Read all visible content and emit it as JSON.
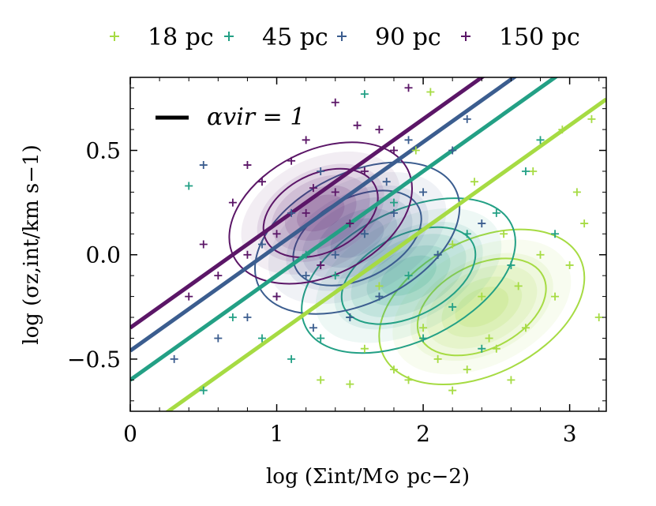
{
  "chart_data": {
    "type": "scatter",
    "xlabel": "log (Σint/M⊙ pc−2)",
    "ylabel": "log (σz,int/km s−1)",
    "xlim": [
      0,
      3.25
    ],
    "ylim": [
      -0.75,
      0.85
    ],
    "xticks": [
      0,
      1,
      2,
      3
    ],
    "xtick_labels": [
      "0",
      "1",
      "2",
      "3"
    ],
    "yticks": [
      -0.5,
      0.0,
      0.5
    ],
    "ytick_labels": [
      "−0.5",
      "0.0",
      "0.5"
    ],
    "legend": {
      "placement": "top",
      "ncol": 4
    },
    "annotation": {
      "label": "αvir = 1",
      "color": "#000000"
    },
    "series": [
      {
        "name": "18 pc",
        "color": "#a6db43",
        "line": {
          "intercept": -0.88,
          "slope": 0.5
        },
        "density_center": [
          2.4,
          -0.25
        ],
        "density_spread": [
          0.62,
          0.28
        ],
        "density_tilt": 0.35,
        "points": [
          [
            1.9,
            -0.6
          ],
          [
            2.1,
            -0.5
          ],
          [
            2.3,
            -0.55
          ],
          [
            2.5,
            -0.45
          ],
          [
            2.7,
            -0.35
          ],
          [
            2.9,
            -0.2
          ],
          [
            3.0,
            -0.05
          ],
          [
            3.1,
            0.15
          ],
          [
            2.6,
            -0.6
          ],
          [
            2.2,
            -0.65
          ],
          [
            1.8,
            -0.55
          ],
          [
            2.8,
            0.0
          ],
          [
            3.05,
            0.3
          ],
          [
            2.95,
            0.6
          ],
          [
            3.15,
            0.65
          ],
          [
            2.4,
            -0.2
          ],
          [
            2.0,
            -0.35
          ],
          [
            1.6,
            -0.45
          ],
          [
            1.3,
            -0.6
          ],
          [
            2.55,
            0.1
          ],
          [
            2.75,
            0.4
          ],
          [
            2.2,
            0.05
          ],
          [
            1.95,
            0.5
          ],
          [
            2.05,
            0.78
          ],
          [
            1.7,
            -0.15
          ],
          [
            3.2,
            -0.3
          ],
          [
            2.45,
            -0.4
          ],
          [
            2.65,
            -0.15
          ],
          [
            1.5,
            -0.62
          ],
          [
            2.35,
            0.35
          ]
        ]
      },
      {
        "name": "45 pc",
        "color": "#23a085",
        "line": {
          "intercept": -0.6,
          "slope": 0.5
        },
        "density_center": [
          1.9,
          -0.1
        ],
        "density_spread": [
          0.65,
          0.27
        ],
        "density_tilt": 0.35,
        "points": [
          [
            1.5,
            -0.3
          ],
          [
            1.7,
            -0.2
          ],
          [
            1.9,
            -0.1
          ],
          [
            2.1,
            0.0
          ],
          [
            2.3,
            0.1
          ],
          [
            2.5,
            0.2
          ],
          [
            1.3,
            -0.4
          ],
          [
            1.1,
            -0.5
          ],
          [
            0.9,
            -0.4
          ],
          [
            2.7,
            0.4
          ],
          [
            2.0,
            -0.4
          ],
          [
            1.6,
            0.1
          ],
          [
            2.2,
            -0.25
          ],
          [
            0.4,
            0.33
          ],
          [
            1.6,
            0.77
          ],
          [
            2.8,
            0.55
          ],
          [
            1.4,
            -0.1
          ],
          [
            2.6,
            -0.05
          ],
          [
            0.7,
            -0.3
          ],
          [
            1.8,
            0.25
          ],
          [
            2.4,
            -0.45
          ],
          [
            0.5,
            -0.65
          ],
          [
            1.2,
            0.0
          ],
          [
            2.9,
            0.1
          ]
        ]
      },
      {
        "name": "90 pc",
        "color": "#3b5d8f",
        "line": {
          "intercept": -0.46,
          "slope": 0.5
        },
        "density_center": [
          1.55,
          0.08
        ],
        "density_spread": [
          0.62,
          0.27
        ],
        "density_tilt": 0.35,
        "points": [
          [
            1.0,
            -0.2
          ],
          [
            1.2,
            -0.1
          ],
          [
            1.4,
            0.0
          ],
          [
            1.6,
            0.1
          ],
          [
            1.8,
            0.2
          ],
          [
            2.0,
            0.3
          ],
          [
            0.8,
            -0.3
          ],
          [
            0.6,
            -0.4
          ],
          [
            1.5,
            -0.3
          ],
          [
            2.2,
            0.5
          ],
          [
            1.9,
            0.55
          ],
          [
            1.7,
            -0.2
          ],
          [
            0.5,
            0.43
          ],
          [
            1.3,
            0.4
          ],
          [
            2.3,
            0.65
          ],
          [
            1.1,
            0.2
          ],
          [
            0.3,
            -0.5
          ],
          [
            2.1,
            0.0
          ],
          [
            0.9,
            0.05
          ],
          [
            1.75,
            0.35
          ],
          [
            1.25,
            -0.35
          ],
          [
            2.4,
            0.15
          ]
        ]
      },
      {
        "name": "150 pc",
        "color": "#5b1667",
        "line": {
          "intercept": -0.35,
          "slope": 0.5
        },
        "density_center": [
          1.3,
          0.2
        ],
        "density_spread": [
          0.55,
          0.26
        ],
        "density_tilt": 0.35,
        "points": [
          [
            0.8,
            0.0
          ],
          [
            1.0,
            0.1
          ],
          [
            1.2,
            0.2
          ],
          [
            1.4,
            0.3
          ],
          [
            1.6,
            0.4
          ],
          [
            1.8,
            0.5
          ],
          [
            0.6,
            -0.1
          ],
          [
            0.4,
            -0.2
          ],
          [
            1.1,
            0.45
          ],
          [
            1.3,
            -0.05
          ],
          [
            1.5,
            0.15
          ],
          [
            0.9,
            0.35
          ],
          [
            1.4,
            0.73
          ],
          [
            1.9,
            0.8
          ],
          [
            0.8,
            0.43
          ],
          [
            1.7,
            0.6
          ],
          [
            0.7,
            0.25
          ],
          [
            1.2,
            0.55
          ],
          [
            1.0,
            -0.2
          ],
          [
            1.55,
            0.62
          ],
          [
            0.5,
            0.05
          ],
          [
            1.25,
            0.32
          ]
        ]
      }
    ]
  }
}
